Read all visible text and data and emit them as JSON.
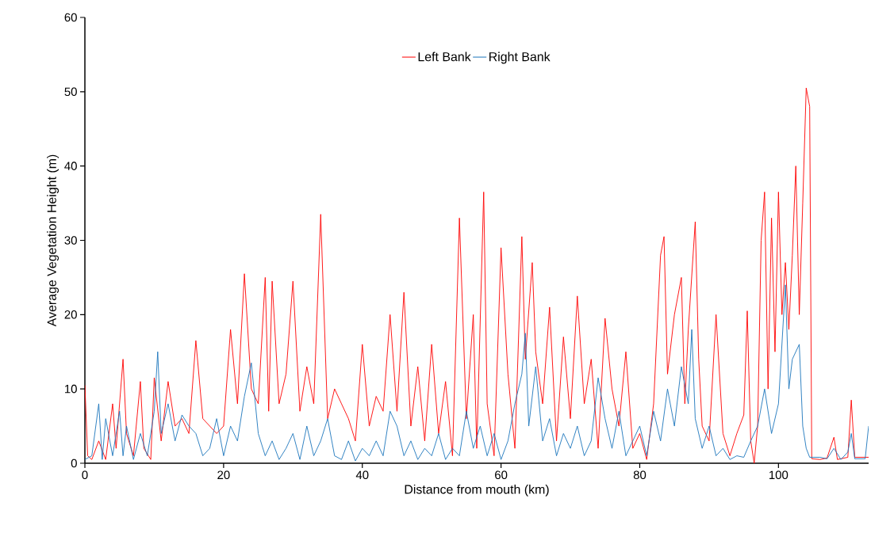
{
  "chart_data": {
    "type": "line",
    "xlabel": "Distance from mouth (km)",
    "ylabel": "Average Vegetation Height (m)",
    "xlim": [
      0,
      113
    ],
    "xticks": [
      0,
      20,
      40,
      60,
      80,
      100
    ],
    "ylim": [
      0,
      60
    ],
    "yticks": [
      0,
      10,
      20,
      30,
      40,
      50,
      60
    ],
    "grid": false,
    "legend": "top",
    "marker": "none",
    "line_style": "solid",
    "series": [
      {
        "name": "Left Bank",
        "color": "#ff0000",
        "x": [
          0,
          0.4,
          1,
          2,
          3,
          4,
          4.5,
          5.5,
          6,
          7,
          8,
          8.5,
          9.5,
          10,
          11,
          12,
          13,
          14,
          15,
          16,
          17,
          18,
          19,
          20,
          21,
          22,
          23,
          24,
          25,
          26,
          26.5,
          27,
          28,
          29,
          30,
          31,
          32,
          33,
          34,
          35,
          36,
          37,
          38,
          39,
          40,
          41,
          42,
          43,
          44,
          45,
          46,
          47,
          48,
          49,
          50,
          51,
          52,
          53,
          54,
          55,
          56,
          56.5,
          57.5,
          58,
          59,
          60,
          61,
          62,
          63,
          63.5,
          64.5,
          65,
          66,
          67,
          68,
          69,
          70,
          71,
          72,
          73,
          74,
          75,
          76,
          77,
          78,
          79,
          80,
          81,
          82,
          83,
          83.5,
          84,
          85,
          86,
          86.5,
          87,
          88,
          88.5,
          89,
          90,
          91,
          92,
          93,
          94,
          95,
          95.5,
          96,
          96.5,
          97,
          97.5,
          98,
          98.5,
          99,
          99.5,
          100,
          100.5,
          101,
          101.5,
          102,
          102.5,
          103,
          103.5,
          104,
          104.5,
          104.8,
          106,
          107,
          108,
          108.5,
          110,
          110.5,
          111,
          113
        ],
        "values": [
          10.5,
          1,
          0.5,
          3,
          0.5,
          8,
          2,
          14,
          4,
          1,
          11,
          2,
          0.5,
          11.5,
          3,
          11,
          5,
          6,
          4,
          16.5,
          6,
          5,
          4,
          5,
          18,
          8,
          25.5,
          10,
          8,
          25,
          7,
          24.5,
          8,
          12,
          24.5,
          7,
          13,
          8,
          33.5,
          6,
          10,
          8,
          6,
          3,
          16,
          5,
          9,
          7,
          20,
          7,
          23,
          5,
          13,
          3,
          16,
          4,
          11,
          1,
          33,
          6,
          20,
          2,
          36.5,
          8,
          1,
          29,
          12,
          2,
          30.5,
          14,
          27,
          15,
          8,
          21,
          3,
          17,
          6,
          22.5,
          8,
          14,
          2,
          19.5,
          10,
          5,
          15,
          2,
          4,
          0.5,
          8,
          28,
          30.5,
          12,
          20,
          25,
          8,
          18,
          32.5,
          14,
          5,
          3,
          20,
          4,
          1,
          4,
          6.5,
          20.5,
          3,
          0,
          5,
          30,
          36.5,
          10,
          33,
          15,
          36.5,
          20,
          27,
          18,
          28,
          40,
          20,
          35,
          50.5,
          48,
          0.6,
          0.5,
          0.7,
          3.5,
          0.5,
          0.8,
          8.5,
          0.8,
          0.8
        ]
      },
      {
        "name": "Right Bank",
        "color": "#1c75bc",
        "x": [
          0,
          1,
          2,
          2.5,
          3,
          4,
          5,
          5.5,
          6,
          7,
          8,
          9,
          10,
          10.5,
          11,
          12,
          13,
          14,
          15,
          16,
          17,
          18,
          19,
          20,
          21,
          22,
          23,
          24,
          25,
          26,
          27,
          28,
          29,
          30,
          31,
          32,
          33,
          34,
          35,
          36,
          37,
          38,
          39,
          40,
          41,
          42,
          43,
          44,
          45,
          46,
          47,
          48,
          49,
          50,
          51,
          52,
          53,
          54,
          55,
          56,
          57,
          58,
          59,
          60,
          61,
          62,
          63,
          63.5,
          64,
          65,
          66,
          67,
          68,
          69,
          70,
          71,
          72,
          73,
          74,
          75,
          76,
          77,
          78,
          79,
          80,
          81,
          82,
          83,
          84,
          85,
          86,
          87,
          87.5,
          88,
          89,
          90,
          91,
          92,
          93,
          94,
          95,
          96,
          97,
          98,
          99,
          100,
          101,
          101.5,
          102,
          103,
          103.5,
          104,
          104.5,
          106,
          107,
          108,
          109,
          110,
          110.5,
          111,
          112.5,
          113
        ],
        "values": [
          0.5,
          1,
          8,
          0.5,
          6,
          1,
          7,
          1,
          5,
          0.5,
          4,
          1,
          7,
          15,
          4,
          8,
          3,
          6.5,
          5,
          4,
          1,
          2,
          6,
          1,
          5,
          3,
          9,
          13.5,
          4,
          1,
          3,
          0.5,
          2,
          4,
          0.5,
          5,
          1,
          3,
          6,
          1,
          0.5,
          3,
          0.3,
          2,
          1,
          3,
          1,
          7,
          5,
          1,
          3,
          0.5,
          2,
          1,
          4,
          0.5,
          2,
          1,
          7,
          2,
          5,
          1,
          4,
          0.5,
          3,
          8,
          12,
          17.5,
          5,
          13,
          3,
          6,
          1,
          4,
          2,
          5,
          1,
          3,
          11.5,
          6,
          2,
          7,
          1,
          3,
          5,
          1,
          7,
          3,
          10,
          5,
          13,
          8,
          18,
          6,
          2,
          5,
          1,
          2,
          0.5,
          1,
          0.8,
          3,
          5,
          10,
          4,
          8,
          24,
          10,
          14,
          16,
          5,
          2,
          0.8,
          0.8,
          0.6,
          2,
          0.5,
          1.5,
          4,
          0.6,
          0.6,
          5
        ]
      }
    ]
  }
}
